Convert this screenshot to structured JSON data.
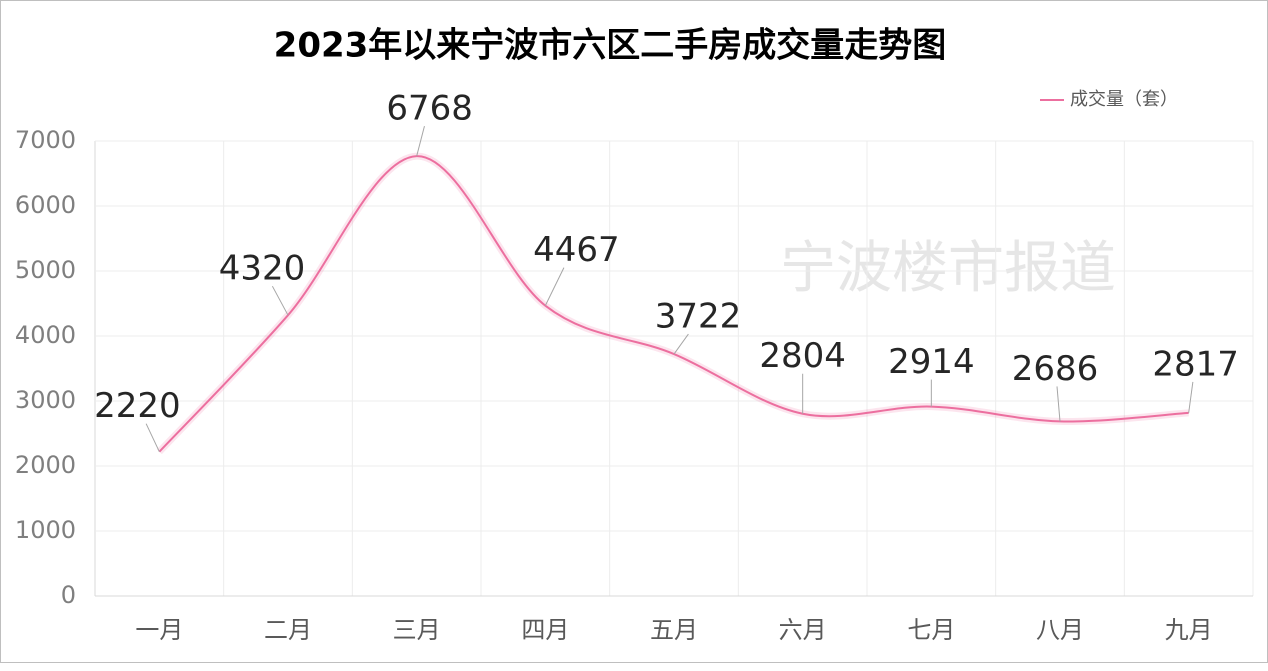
{
  "chart_data": {
    "type": "line",
    "title": "2023年以来宁波市六区二手房成交量走势图",
    "watermark": "宁波楼市报道",
    "categories": [
      "一月",
      "二月",
      "三月",
      "四月",
      "五月",
      "六月",
      "七月",
      "八月",
      "九月"
    ],
    "series": [
      {
        "name": "成交量（套）",
        "color": "#ec6f9f",
        "values": [
          2220,
          4320,
          6768,
          4467,
          3722,
          2804,
          2914,
          2686,
          2817
        ]
      }
    ],
    "ylim": [
      0,
      7000
    ],
    "yticks": [
      0,
      1000,
      2000,
      3000,
      4000,
      5000,
      6000,
      7000
    ],
    "grid": true,
    "legend": "top-right",
    "smooth": true
  }
}
